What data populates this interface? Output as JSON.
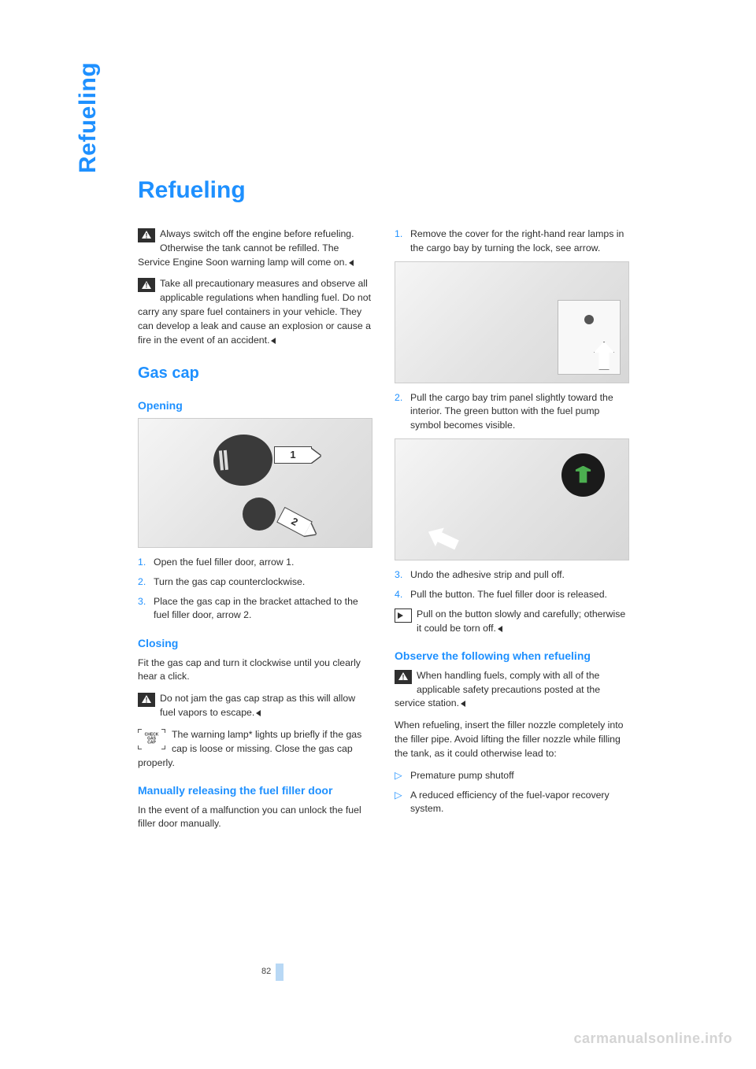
{
  "sideTab": "Refueling",
  "title": "Refueling",
  "pageNumber": "82",
  "watermark": "carmanualsonline.info",
  "colors": {
    "accent": "#1e90ff",
    "text": "#2f2f2f",
    "watermark": "#d4d4d4",
    "pageBar": "#b8d8f5"
  },
  "left": {
    "warn1": "Always switch off the engine before refueling. Otherwise the tank cannot be refilled. The Service Engine Soon warning lamp will come on.",
    "warn2": "Take all precautionary measures and observe all applicable regulations when handling fuel. Do not carry any spare fuel containers in your vehicle. They can develop a leak and cause an explosion or cause a fire in the event of an accident.",
    "h2_gascap": "Gas cap",
    "h3_opening": "Opening",
    "fig1_label1": "1",
    "fig1_label2": "2",
    "opening_steps": [
      {
        "n": "1.",
        "t": "Open the fuel filler door, arrow 1."
      },
      {
        "n": "2.",
        "t": "Turn the gas cap counterclockwise."
      },
      {
        "n": "3.",
        "t": "Place the gas cap in the bracket attached to the fuel filler door, arrow 2."
      }
    ],
    "h3_closing": "Closing",
    "closing_p": "Fit the gas cap and turn it clockwise until you clearly hear a click.",
    "closing_warn": "Do not jam the gas cap strap as this will allow fuel vapors to escape.",
    "check_text": "The warning lamp* lights up briefly if the gas cap is loose or missing. Close the gas cap properly.",
    "check_label_top": "CHECK",
    "check_label_bot": "GAS CAP",
    "h3_manual": "Manually releasing the fuel filler door",
    "manual_p": "In the event of a malfunction you can unlock the fuel filler door manually."
  },
  "right": {
    "step1": {
      "n": "1.",
      "t": "Remove the cover for the right-hand rear lamps in the cargo bay by turning the lock, see arrow."
    },
    "step2": {
      "n": "2.",
      "t": "Pull the cargo bay trim panel slightly toward the interior. The green button with the fuel pump symbol becomes visible."
    },
    "step3": {
      "n": "3.",
      "t": "Undo the adhesive strip and pull off."
    },
    "step4": {
      "n": "4.",
      "t": "Pull the button. The fuel filler door is released."
    },
    "tip": "Pull on the button slowly and carefully; otherwise it could be torn off.",
    "h3_observe": "Observe the following when refueling",
    "observe_warn": "When handling fuels, comply with all of the applicable safety precautions posted at the service station.",
    "observe_p": "When refueling, insert the filler nozzle completely into the filler pipe. Avoid lifting the filler nozzle while filling the tank, as it could otherwise lead to:",
    "bullets": [
      "Premature pump shutoff",
      "A reduced efficiency of the fuel-vapor recovery system."
    ]
  }
}
